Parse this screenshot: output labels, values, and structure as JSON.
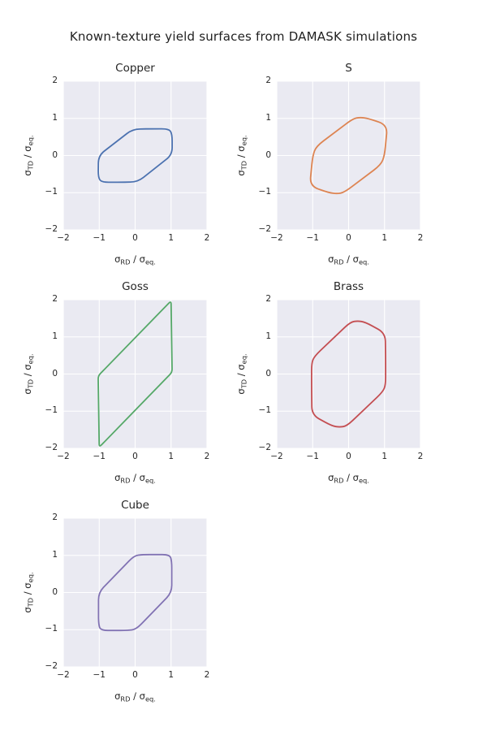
{
  "figure": {
    "suptitle": "Known-texture yield surfaces from DAMASK simulations",
    "background_color": "#ffffff",
    "axes_background_color": "#eaeaf2",
    "grid_color": "#ffffff",
    "text_color": "#262626"
  },
  "axis": {
    "sigma": "σ",
    "x_sub": "RD",
    "y_sub": "TD",
    "divider": " / ",
    "eq_sub": "eq.",
    "tick_labels": [
      "−2",
      "−1",
      "0",
      "1",
      "2"
    ],
    "tick_values": [
      -2,
      -1,
      0,
      1,
      2
    ]
  },
  "chart_data": {
    "type": "line",
    "title": "Known-texture yield surfaces from DAMASK simulations",
    "subplots": [
      "Copper",
      "S",
      "Goss",
      "Brass",
      "Cube"
    ],
    "xlabel": "σ_RD / σ_eq.",
    "ylabel": "σ_TD / σ_eq.",
    "xlim": [
      -2,
      2
    ],
    "ylim": [
      -2,
      2
    ],
    "grid": true,
    "legend": false,
    "series": [
      {
        "name": "Copper",
        "color": "#4c72b0",
        "corner_radius_px": 9,
        "points": [
          [
            -1.02,
            0.0
          ],
          [
            -0.07,
            0.71
          ],
          [
            0.5,
            0.72
          ],
          [
            0.94,
            0.72
          ],
          [
            1.03,
            0.58
          ],
          [
            1.03,
            0.02
          ],
          [
            0.07,
            -0.71
          ],
          [
            -0.5,
            -0.72
          ],
          [
            -0.94,
            -0.72
          ],
          [
            -1.03,
            -0.58
          ]
        ]
      },
      {
        "name": "S",
        "color": "#dd8452",
        "corner_radius_px": 11,
        "points": [
          [
            0.12,
            0.99
          ],
          [
            0.32,
            1.03
          ],
          [
            0.55,
            1.0
          ],
          [
            1.08,
            0.82
          ],
          [
            1.0,
            0.0
          ],
          [
            0.9,
            -0.25
          ],
          [
            -0.12,
            -0.99
          ],
          [
            -0.32,
            -1.03
          ],
          [
            -0.55,
            -1.0
          ],
          [
            -1.08,
            -0.82
          ],
          [
            -1.0,
            0.0
          ],
          [
            -0.9,
            0.25
          ]
        ]
      },
      {
        "name": "Goss",
        "color": "#55a868",
        "corner_radius_px": 4,
        "points": [
          [
            1.0,
            1.97
          ],
          [
            1.03,
            0.05
          ],
          [
            -1.0,
            -1.97
          ],
          [
            -1.03,
            -0.05
          ]
        ]
      },
      {
        "name": "Brass",
        "color": "#c44e52",
        "corner_radius_px": 10,
        "points": [
          [
            0.05,
            1.4
          ],
          [
            0.25,
            1.43
          ],
          [
            0.46,
            1.4
          ],
          [
            1.02,
            1.1
          ],
          [
            1.03,
            0.3
          ],
          [
            1.03,
            -0.3
          ],
          [
            0.95,
            -0.48
          ],
          [
            -0.05,
            -1.4
          ],
          [
            -0.25,
            -1.43
          ],
          [
            -0.46,
            -1.4
          ],
          [
            -1.02,
            -1.1
          ],
          [
            -1.03,
            -0.3
          ],
          [
            -1.03,
            0.3
          ],
          [
            -0.95,
            0.48
          ]
        ]
      },
      {
        "name": "Cube",
        "color": "#8172b3",
        "corner_radius_px": 9,
        "points": [
          [
            -1.02,
            0.0
          ],
          [
            -0.03,
            0.99
          ],
          [
            0.2,
            1.02
          ],
          [
            0.96,
            1.02
          ],
          [
            1.02,
            0.85
          ],
          [
            1.02,
            0.0
          ],
          [
            0.03,
            -0.99
          ],
          [
            -0.2,
            -1.02
          ],
          [
            -0.96,
            -1.02
          ],
          [
            -1.02,
            -0.85
          ]
        ]
      }
    ]
  }
}
